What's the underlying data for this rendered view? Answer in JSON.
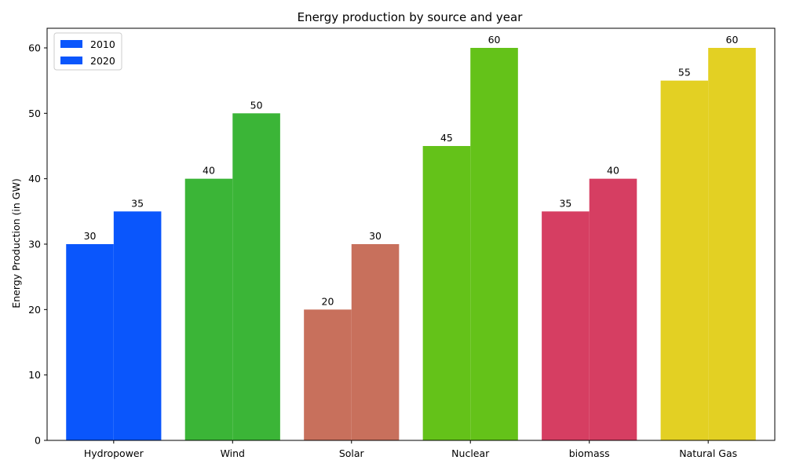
{
  "chart_data": {
    "type": "bar",
    "title": "Energy production by source and year",
    "xlabel": "",
    "ylabel": "Energy Production (in GW)",
    "categories": [
      "Hydropower",
      "Wind",
      "Solar",
      "Nuclear",
      "biomass",
      "Natural Gas"
    ],
    "series": [
      {
        "name": "2010",
        "values": [
          30,
          40,
          20,
          45,
          35,
          55
        ]
      },
      {
        "name": "2020",
        "values": [
          35,
          50,
          30,
          60,
          40,
          60
        ]
      }
    ],
    "category_colors": [
      "#0a56fc",
      "#3bb537",
      "#c8705c",
      "#64c219",
      "#d63e62",
      "#e3d023"
    ],
    "legend_color": "#0a56fc",
    "ylim": [
      0,
      63
    ],
    "yticks": [
      0,
      10,
      20,
      30,
      40,
      50,
      60
    ],
    "grid": false,
    "legend_position": "top-left"
  }
}
